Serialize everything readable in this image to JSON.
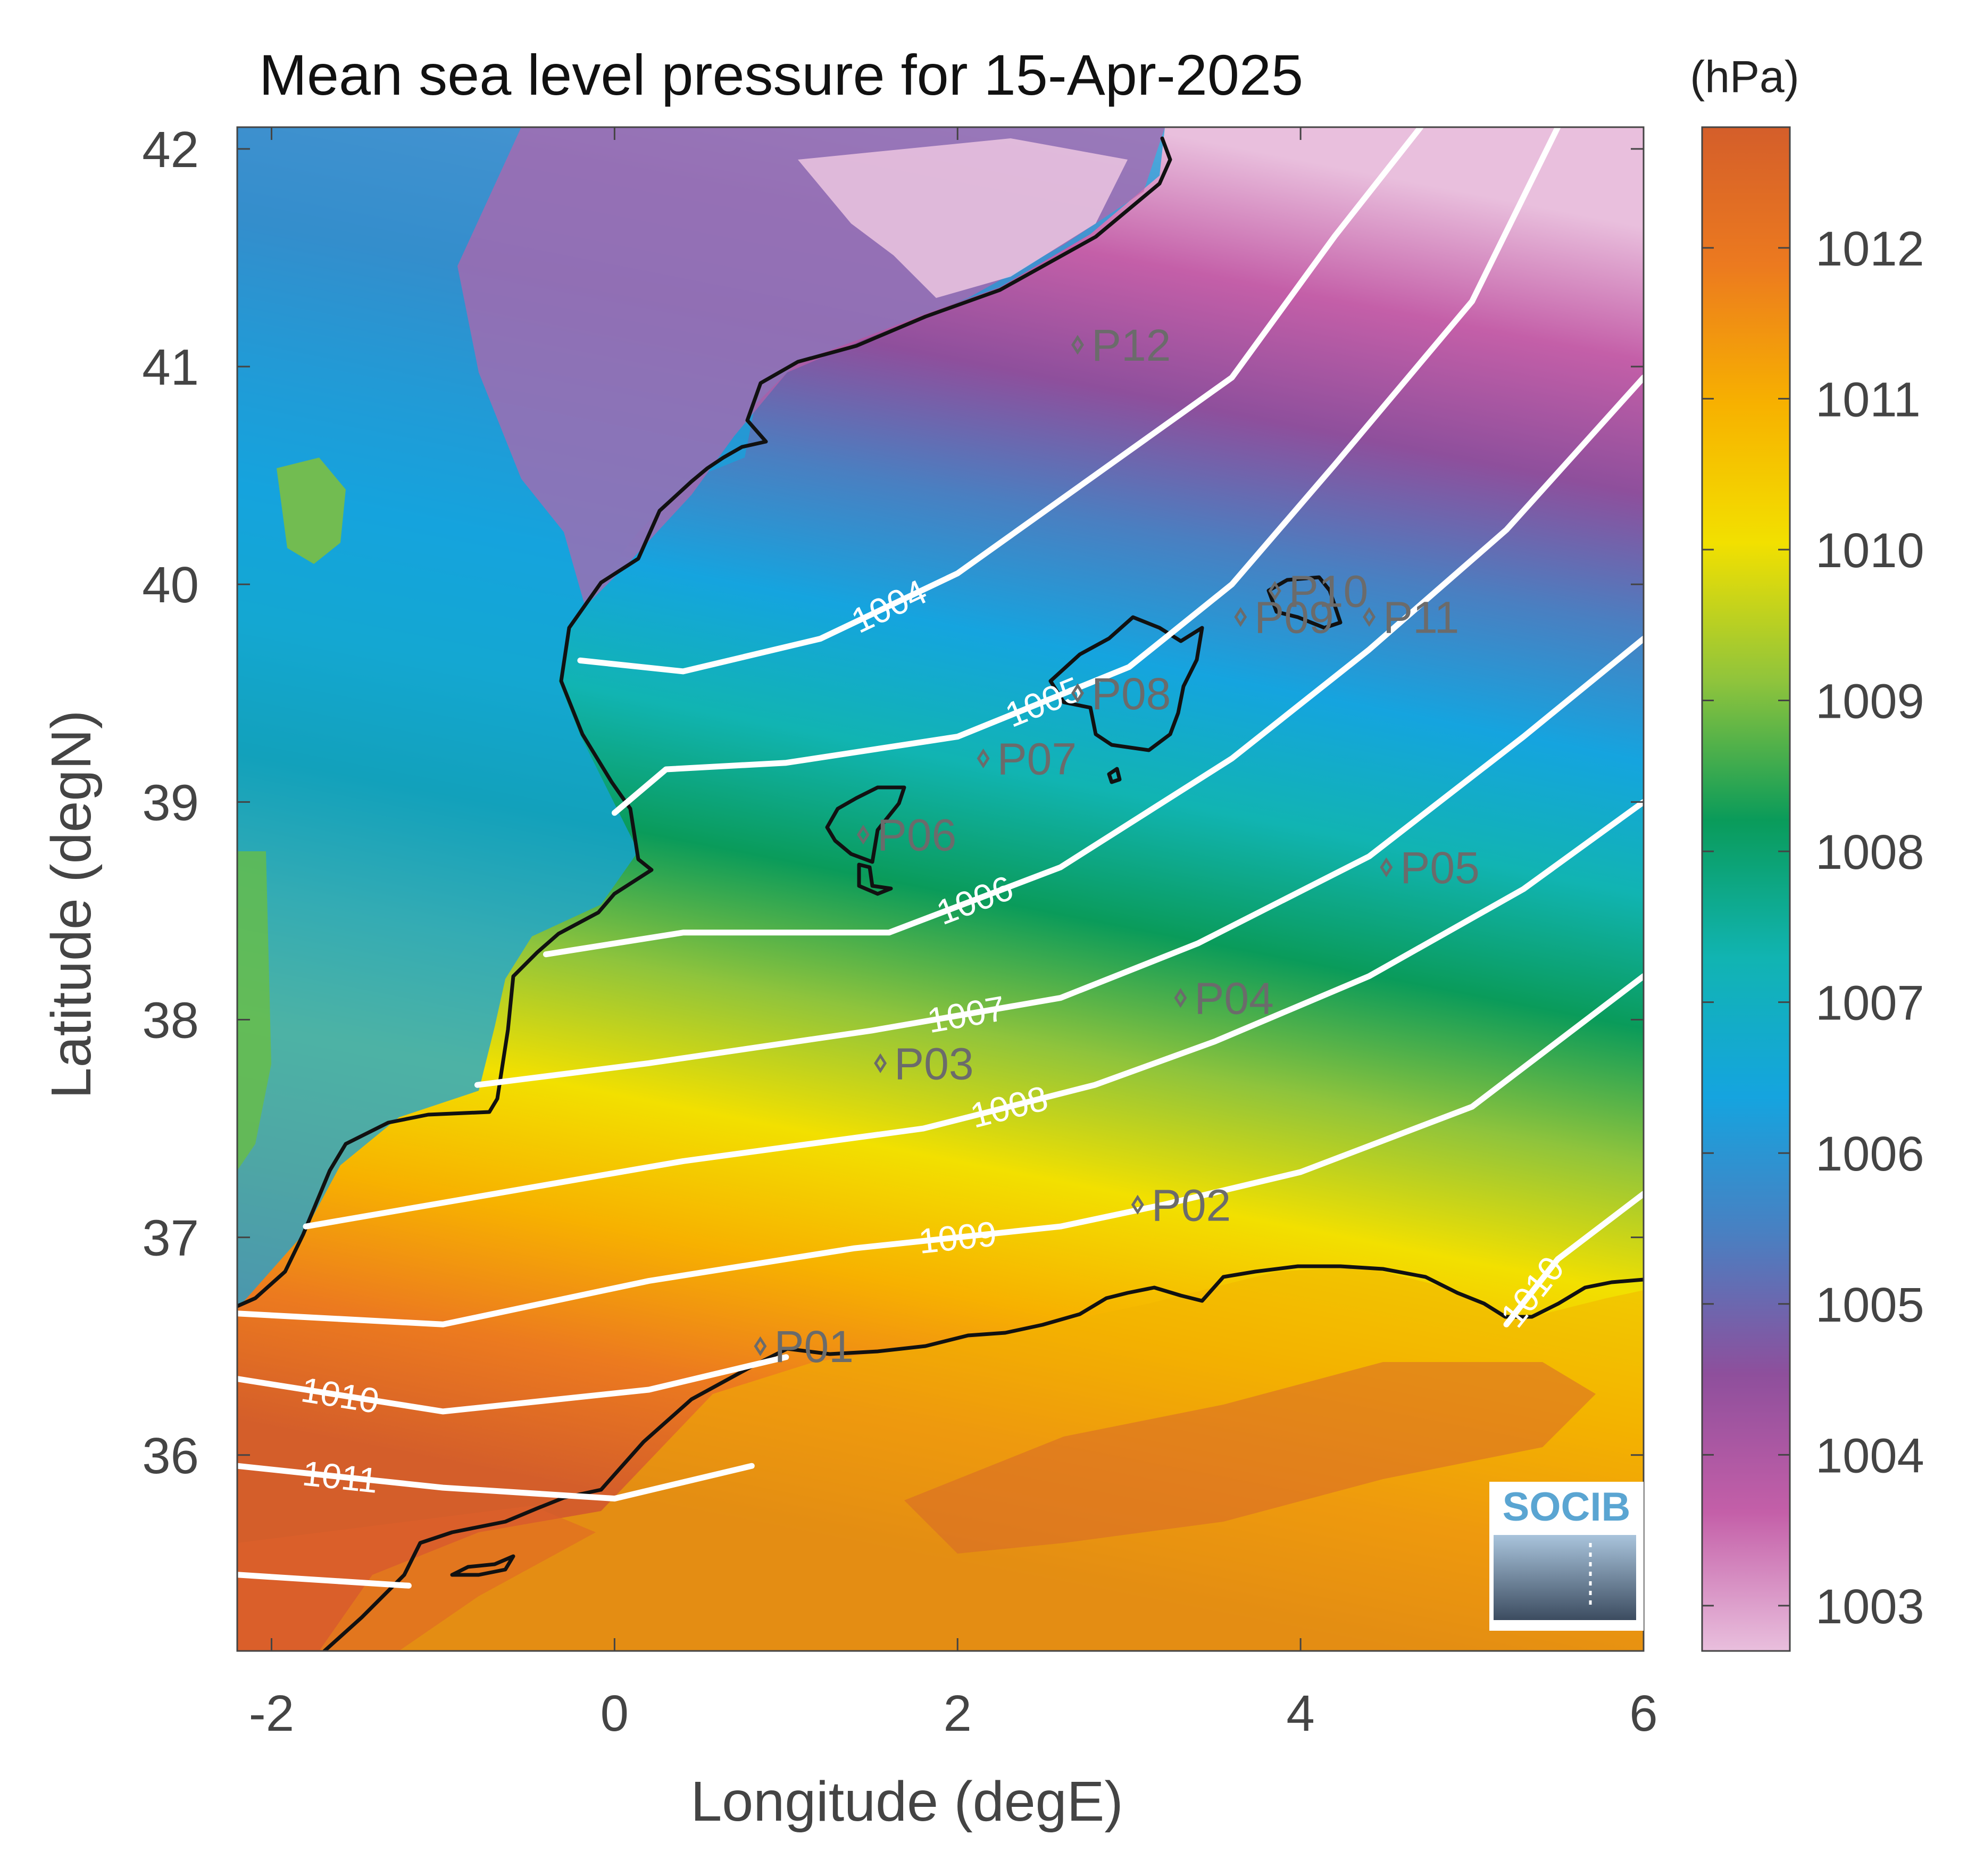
{
  "title": "Mean sea level pressure for 15-Apr-2025",
  "colorbar_unit": "(hPa)",
  "logo_text": "SOCIB",
  "colors": {
    "coastline": "#111111",
    "isobar": "#ffffff",
    "station_marker": "#6b6b6b",
    "colormap": [
      "#e9bfdd",
      "#c45fa8",
      "#8e4f9c",
      "#4a7fc1",
      "#15a4df",
      "#11b4b2",
      "#0a9b5a",
      "#8fc43c",
      "#f2e000",
      "#f7b100",
      "#ec7a1f",
      "#d45e2a"
    ]
  },
  "map": {
    "projection": "plate carree",
    "lon_range": [
      -2.2,
      6
    ],
    "lat_range": [
      35.1,
      42.1
    ],
    "xlabel": "Longitude (degE)",
    "ylabel": "Latitude (degN)",
    "xticks": [
      "-2",
      "0",
      "2",
      "4",
      "6"
    ],
    "yticks": [
      "36",
      "37",
      "38",
      "39",
      "40",
      "41",
      "42"
    ],
    "field": "mean sea level pressure",
    "unit": "hPa",
    "contour_interval": 1,
    "isobars": [
      {
        "level": "1004",
        "points": [
          [
            -0.2,
            39.65
          ],
          [
            0.4,
            39.6
          ],
          [
            1.2,
            39.75
          ],
          [
            2.0,
            40.05
          ],
          [
            2.8,
            40.5
          ],
          [
            3.6,
            40.95
          ],
          [
            4.2,
            41.6
          ],
          [
            4.7,
            42.1
          ]
        ]
      },
      {
        "level": "1005",
        "points": [
          [
            0,
            38.95
          ],
          [
            0.3,
            39.15
          ],
          [
            1.0,
            39.18
          ],
          [
            2.0,
            39.3
          ],
          [
            3.0,
            39.62
          ],
          [
            3.6,
            40.0
          ],
          [
            4.2,
            40.55
          ],
          [
            5.0,
            41.3
          ],
          [
            5.5,
            42.1
          ]
        ]
      },
      {
        "level": "1006",
        "points": [
          [
            -0.4,
            38.3
          ],
          [
            0.4,
            38.4
          ],
          [
            1.6,
            38.4
          ],
          [
            2.6,
            38.7
          ],
          [
            3.6,
            39.2
          ],
          [
            4.4,
            39.7
          ],
          [
            5.2,
            40.25
          ],
          [
            6,
            40.95
          ]
        ]
      },
      {
        "level": "1007",
        "points": [
          [
            -0.8,
            37.7
          ],
          [
            0.2,
            37.8
          ],
          [
            1.5,
            37.95
          ],
          [
            2.6,
            38.1
          ],
          [
            3.4,
            38.35
          ],
          [
            4.4,
            38.75
          ],
          [
            5.3,
            39.3
          ],
          [
            6,
            39.75
          ]
        ]
      },
      {
        "level": "1008",
        "points": [
          [
            -1.8,
            37.05
          ],
          [
            -0.7,
            37.2
          ],
          [
            0.4,
            37.35
          ],
          [
            1.8,
            37.5
          ],
          [
            2.8,
            37.7
          ],
          [
            3.5,
            37.9
          ],
          [
            4.4,
            38.2
          ],
          [
            5.3,
            38.6
          ],
          [
            6,
            39.0
          ]
        ]
      },
      {
        "level": "1009",
        "points": [
          [
            -2.2,
            36.65
          ],
          [
            -1.0,
            36.6
          ],
          [
            0.2,
            36.8
          ],
          [
            1.4,
            36.95
          ],
          [
            2.6,
            37.05
          ],
          [
            3.2,
            37.15
          ],
          [
            4.0,
            37.3
          ],
          [
            5.0,
            37.6
          ],
          [
            6,
            38.2
          ]
        ]
      },
      {
        "level": "1010",
        "points": [
          [
            -2.2,
            36.35
          ],
          [
            -1.0,
            36.2
          ],
          [
            0.2,
            36.3
          ],
          [
            1.0,
            36.45
          ]
        ]
      },
      {
        "level": "1010",
        "points": [
          [
            5.2,
            36.6
          ],
          [
            5.5,
            36.9
          ],
          [
            6,
            37.2
          ]
        ]
      },
      {
        "level": "1011",
        "points": [
          [
            -2.2,
            35.95
          ],
          [
            -1.0,
            35.85
          ],
          [
            0.0,
            35.8
          ],
          [
            0.8,
            35.95
          ]
        ]
      },
      {
        "level": "",
        "points": [
          [
            -2.2,
            35.45
          ],
          [
            -1.2,
            35.4
          ]
        ]
      }
    ],
    "stations": [
      {
        "id": "P01",
        "lon": 0.85,
        "lat": 36.5
      },
      {
        "id": "P02",
        "lon": 3.05,
        "lat": 37.15
      },
      {
        "id": "P03",
        "lon": 1.55,
        "lat": 37.8
      },
      {
        "id": "P04",
        "lon": 3.3,
        "lat": 38.1
      },
      {
        "id": "P05",
        "lon": 4.5,
        "lat": 38.7
      },
      {
        "id": "P06",
        "lon": 1.45,
        "lat": 38.85
      },
      {
        "id": "P07",
        "lon": 2.15,
        "lat": 39.2
      },
      {
        "id": "P08",
        "lon": 2.7,
        "lat": 39.5
      },
      {
        "id": "P09",
        "lon": 3.65,
        "lat": 39.85
      },
      {
        "id": "P10",
        "lon": 3.85,
        "lat": 39.97
      },
      {
        "id": "P11",
        "lon": 4.4,
        "lat": 39.85
      },
      {
        "id": "P12",
        "lon": 2.7,
        "lat": 41.1
      }
    ]
  },
  "colorbar": {
    "range": [
      1002.7,
      1012.8
    ],
    "ticks": [
      "1003",
      "1004",
      "1005",
      "1006",
      "1007",
      "1008",
      "1009",
      "1010",
      "1011",
      "1012"
    ]
  }
}
